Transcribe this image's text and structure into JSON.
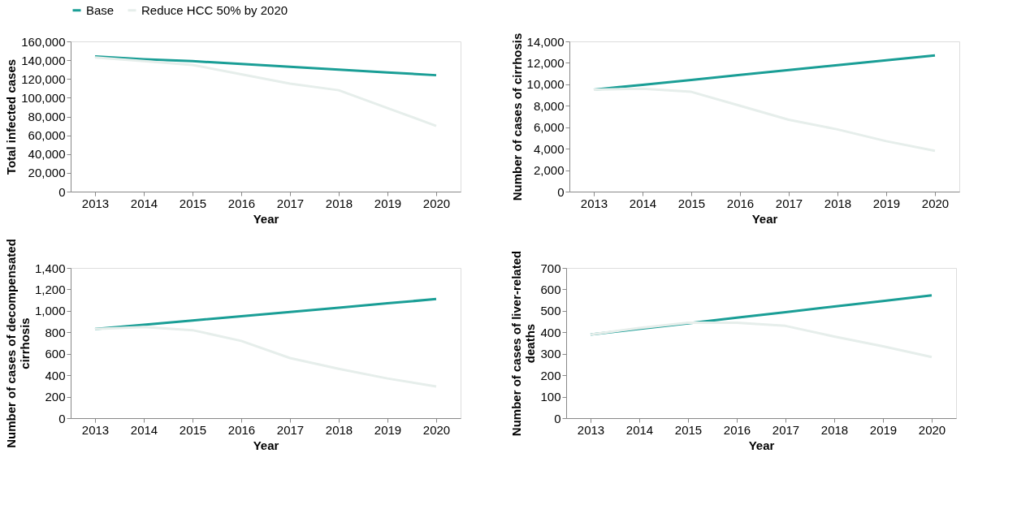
{
  "chart_data": [
    {
      "type": "line",
      "categories": [
        "2013",
        "2014",
        "2015",
        "2016",
        "2017",
        "2018",
        "2019",
        "2020"
      ],
      "xlabel": "Year",
      "ylabel": "Total infected cases",
      "ylim": [
        0,
        160000
      ],
      "yticks": [
        {
          "value": 0,
          "label": "0"
        },
        {
          "value": 20000,
          "label": "20,000"
        },
        {
          "value": 40000,
          "label": "40,000"
        },
        {
          "value": 60000,
          "label": "60,000"
        },
        {
          "value": 80000,
          "label": "80,000"
        },
        {
          "value": 100000,
          "label": "100,000"
        },
        {
          "value": 120000,
          "label": "120,000"
        },
        {
          "value": 140000,
          "label": "140,000"
        },
        {
          "value": 160000,
          "label": "160,000"
        }
      ],
      "grid": false,
      "legend": "top",
      "marker": "none",
      "series": [
        {
          "name": "Base",
          "color": "#1a9e96",
          "values": [
            144000,
            141000,
            139000,
            136000,
            133000,
            130000,
            127000,
            124000
          ]
        },
        {
          "name": "Reduce HCC 50% by 2020",
          "color": "#e6eeeb",
          "values": [
            143000,
            139000,
            135000,
            125000,
            115000,
            108000,
            89000,
            70000
          ]
        }
      ]
    },
    {
      "type": "line",
      "categories": [
        "2013",
        "2014",
        "2015",
        "2016",
        "2017",
        "2018",
        "2019",
        "2020"
      ],
      "xlabel": "Year",
      "ylabel": "Number of cases of cirrhosis",
      "ylim": [
        0,
        14000
      ],
      "yticks": [
        {
          "value": 0,
          "label": "0"
        },
        {
          "value": 2000,
          "label": "2,000"
        },
        {
          "value": 4000,
          "label": "4,000"
        },
        {
          "value": 6000,
          "label": "6,000"
        },
        {
          "value": 8000,
          "label": "8,000"
        },
        {
          "value": 10000,
          "label": "10,000"
        },
        {
          "value": 12000,
          "label": "12,000"
        },
        {
          "value": 14000,
          "label": "14,000"
        }
      ],
      "grid": false,
      "legend": "top",
      "marker": "none",
      "series": [
        {
          "name": "Base",
          "color": "#1a9e96",
          "values": [
            9500,
            9960,
            10410,
            10870,
            11330,
            11790,
            12240,
            12700
          ]
        },
        {
          "name": "Reduce HCC 50% by 2020",
          "color": "#e6eeeb",
          "values": [
            9500,
            9600,
            9300,
            8000,
            6700,
            5800,
            4700,
            3800
          ]
        }
      ]
    },
    {
      "type": "line",
      "categories": [
        "2013",
        "2014",
        "2015",
        "2016",
        "2017",
        "2018",
        "2019",
        "2020"
      ],
      "xlabel": "Year",
      "ylabel": "Number of cases of decompensated cirrhosis",
      "ylim": [
        0,
        1400
      ],
      "yticks": [
        {
          "value": 0,
          "label": "0"
        },
        {
          "value": 200,
          "label": "200"
        },
        {
          "value": 400,
          "label": "400"
        },
        {
          "value": 600,
          "label": "600"
        },
        {
          "value": 800,
          "label": "800"
        },
        {
          "value": 1000,
          "label": "1,000"
        },
        {
          "value": 1200,
          "label": "1,200"
        },
        {
          "value": 1400,
          "label": "1,400"
        }
      ],
      "grid": false,
      "legend": "top",
      "marker": "none",
      "series": [
        {
          "name": "Base",
          "color": "#1a9e96",
          "values": [
            830,
            870,
            910,
            950,
            990,
            1030,
            1070,
            1110
          ]
        },
        {
          "name": "Reduce HCC 50% by 2020",
          "color": "#e6eeeb",
          "values": [
            830,
            850,
            820,
            720,
            560,
            460,
            370,
            295
          ]
        }
      ]
    },
    {
      "type": "line",
      "categories": [
        "2013",
        "2014",
        "2015",
        "2016",
        "2017",
        "2018",
        "2019",
        "2020"
      ],
      "xlabel": "Year",
      "ylabel": "Number of cases of liver-related deaths",
      "ylim": [
        0,
        700
      ],
      "yticks": [
        0,
        100,
        200,
        300,
        400,
        500,
        600,
        700
      ],
      "grid": false,
      "legend": "top",
      "marker": "none",
      "series": [
        {
          "name": "Base",
          "color": "#1a9e96",
          "values": [
            390,
            416,
            442,
            468,
            494,
            520,
            546,
            572
          ]
        },
        {
          "name": "Reduce HCC 50% by 2020",
          "color": "#e6eeeb",
          "values": [
            390,
            420,
            445,
            445,
            430,
            380,
            335,
            285
          ]
        }
      ]
    }
  ]
}
